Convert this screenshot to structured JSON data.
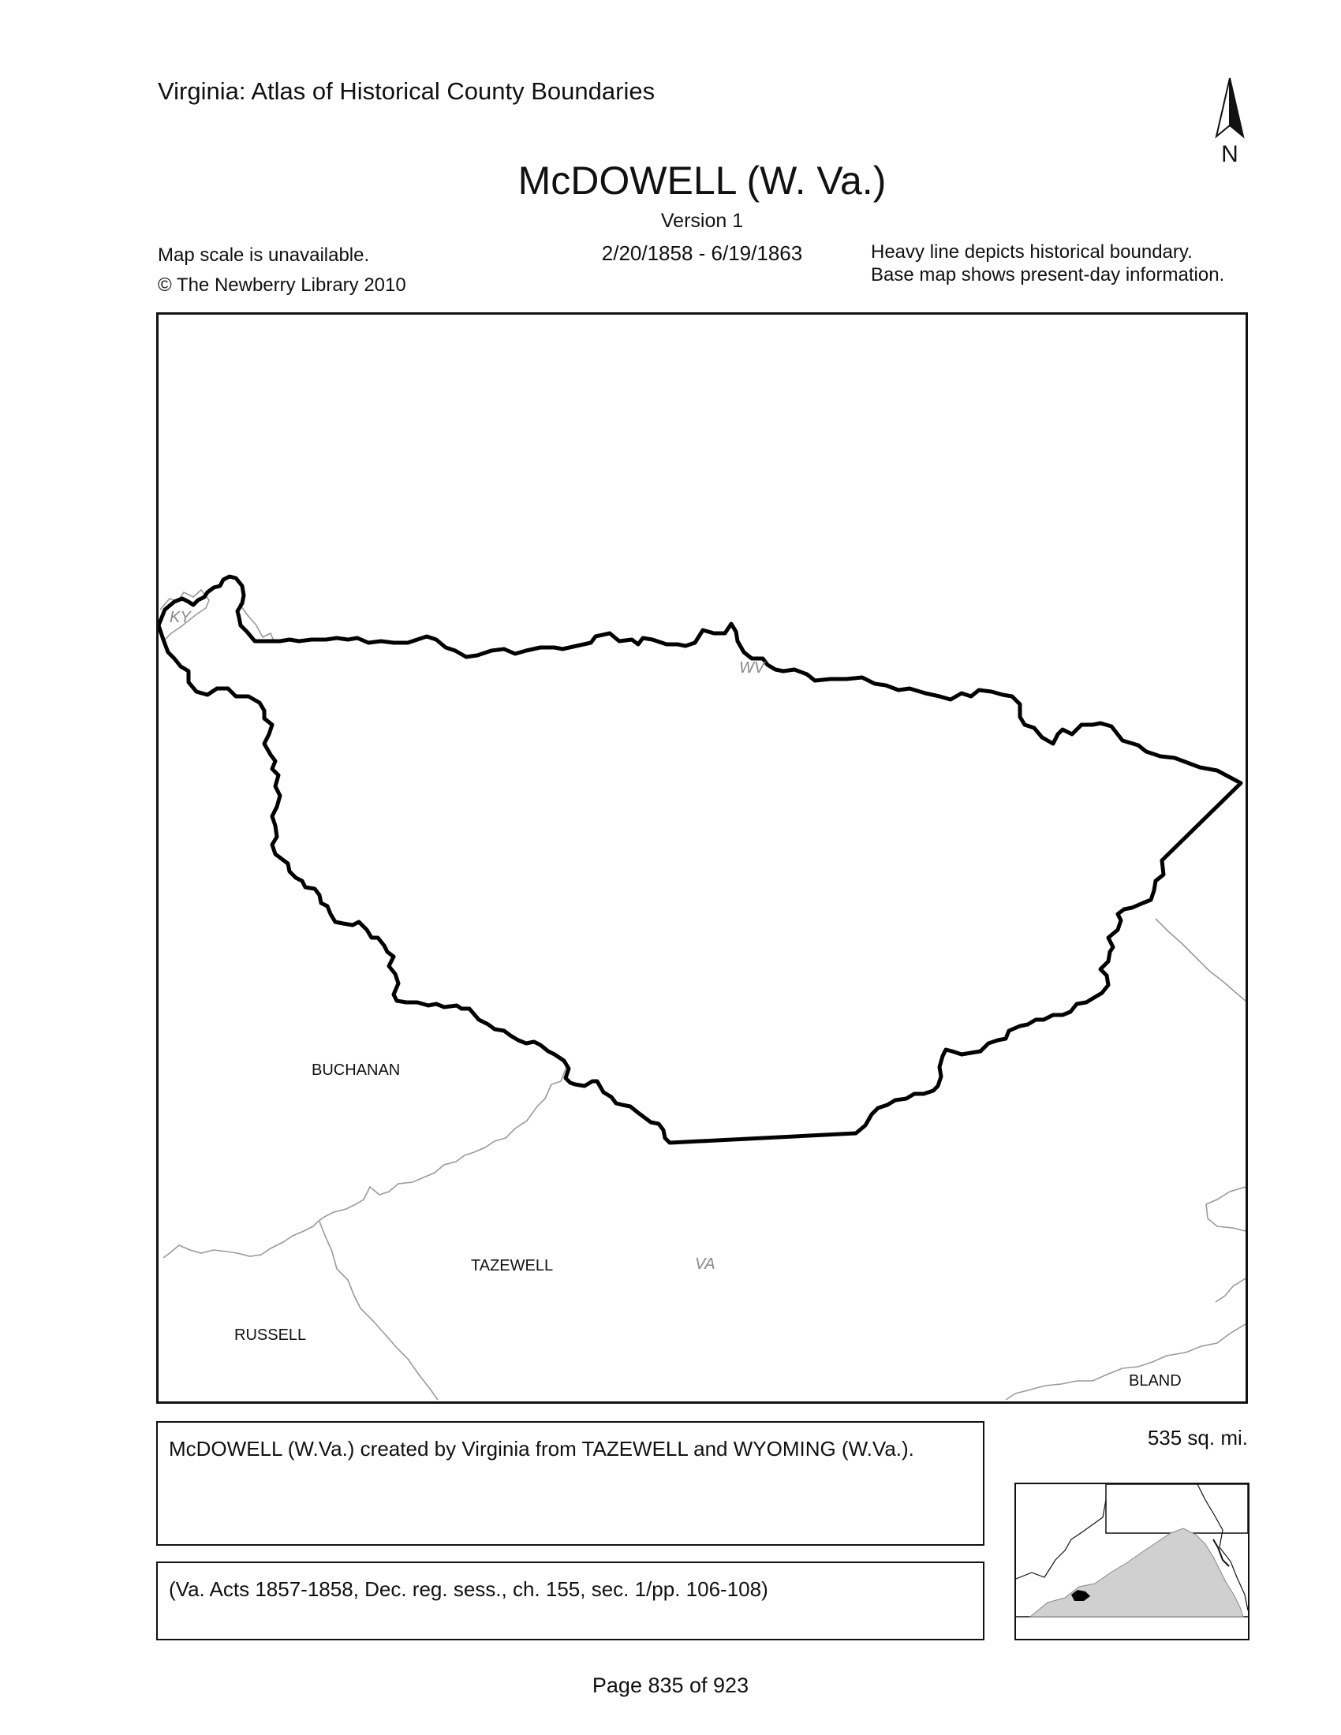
{
  "header": {
    "atlas_title": "Virginia: Atlas of Historical County Boundaries",
    "county_title": "McDOWELL (W. Va.)",
    "version": "Version 1",
    "date_range": "2/20/1858 - 6/19/1863",
    "scale_note": "Map scale is unavailable.",
    "copyright": "© The Newberry Library 2010",
    "legend_line1": "Heavy line depicts historical boundary.",
    "legend_line2": "Base map shows present-day information.",
    "north_label": "N"
  },
  "map": {
    "state_labels": [
      "KY",
      "WV",
      "VA"
    ],
    "county_labels": [
      "BUCHANAN",
      "TAZEWELL",
      "RUSSELL",
      "BLAND"
    ]
  },
  "footer": {
    "description": "McDOWELL (W.Va.) created by Virginia from TAZEWELL and WYOMING (W.Va.).",
    "citation": "(Va. Acts 1857-1858, Dec. reg. sess., ch. 155, sec. 1/pp. 106-108)",
    "area": "535 sq. mi.",
    "page": "Page 835 of 923"
  },
  "colors": {
    "boundary": "#000000",
    "base_lines": "#9a9a9a",
    "inset_state_fill": "#d0d0d0",
    "label_gray": "#888888"
  }
}
